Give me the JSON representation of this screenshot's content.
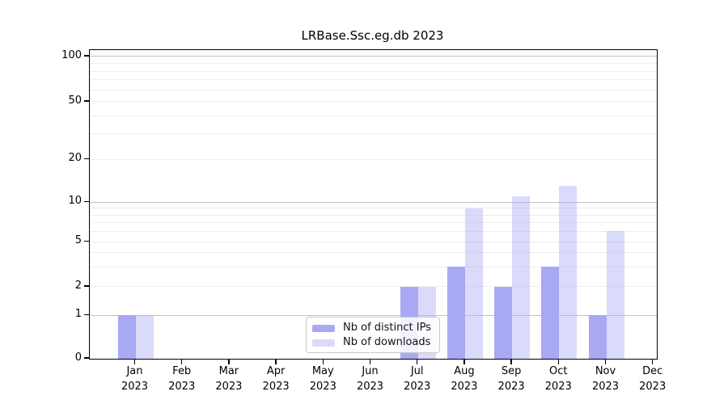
{
  "chart_data": {
    "type": "bar",
    "title": "LRBase.Ssc.eg.db 2023",
    "categories": [
      "Jan",
      "Feb",
      "Mar",
      "Apr",
      "May",
      "Jun",
      "Jul",
      "Aug",
      "Sep",
      "Oct",
      "Nov",
      "Dec"
    ],
    "category_year": "2023",
    "series": [
      {
        "name": "Nb of distinct IPs",
        "color": "#a8a8f3",
        "values": [
          1,
          0,
          0,
          0,
          0,
          0,
          2,
          3,
          2,
          3,
          1,
          0
        ]
      },
      {
        "name": "Nb of downloads",
        "color": "#dbdbf9",
        "fill_rgba": "rgba(168,168,242,0.42)",
        "values": [
          1,
          0,
          0,
          0,
          0,
          0,
          2,
          9,
          11,
          13,
          6,
          0
        ]
      }
    ],
    "y_axis": {
      "ticks": [
        0,
        1,
        2,
        5,
        10,
        20,
        50,
        100
      ],
      "scale": "log-like (linear 0-1, log 1-100)",
      "ylim": [
        0,
        100
      ]
    },
    "xlabel": "",
    "ylabel": "",
    "grid": true,
    "legend_position": "lower center",
    "colors": {
      "decade_gridline": "#c2c2c2",
      "minor_gridline": "#ededed",
      "axis": "#000000",
      "background": "#ffffff"
    }
  }
}
